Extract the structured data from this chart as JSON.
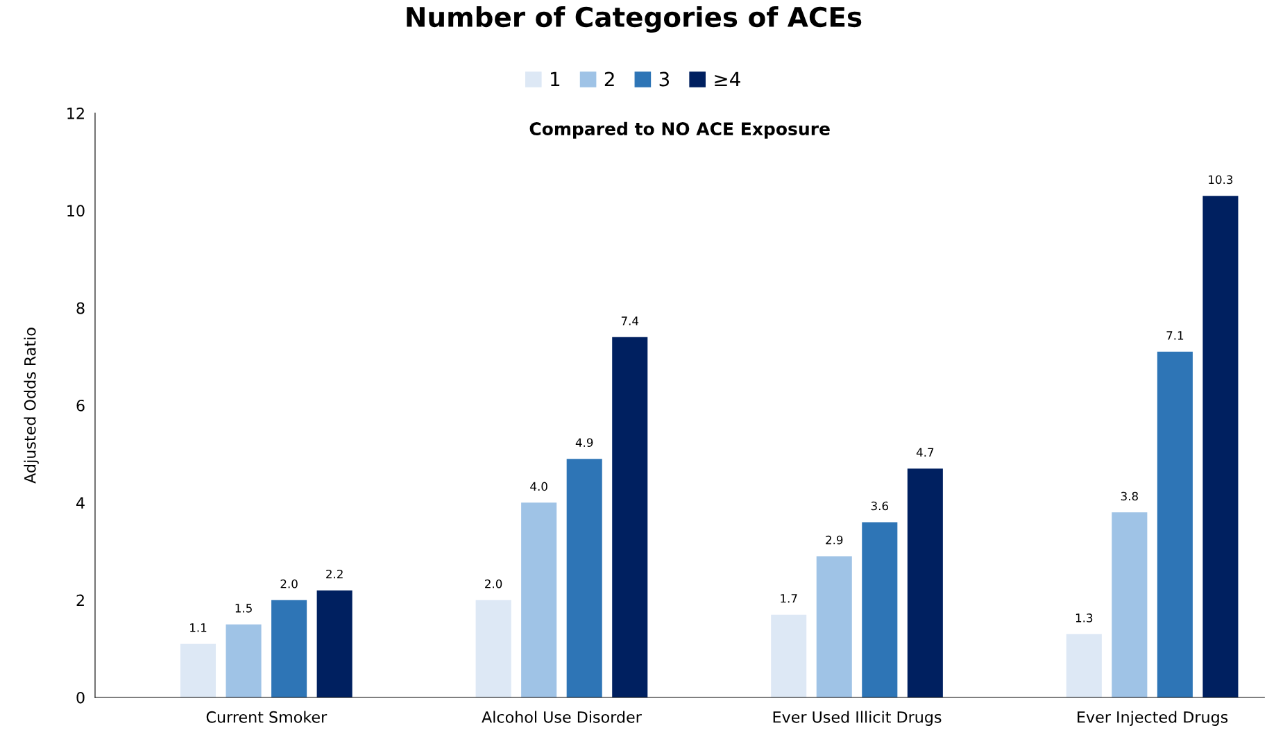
{
  "chart_data": {
    "type": "bar",
    "title": "Number of Categories of ACEs",
    "subtitle": "Compared to NO ACE Exposure",
    "ylabel": "Adjusted Odds Ratio",
    "categories": [
      "Current Smoker",
      "Alcohol Use Disorder",
      "Ever Used Illicit Drugs",
      "Ever Injected Drugs"
    ],
    "series": [
      {
        "name": "1",
        "color": "#dde8f5",
        "values": [
          1.1,
          2.0,
          1.7,
          1.3
        ],
        "value_labels": [
          "1.1",
          "2.0",
          "1.7",
          "1.3"
        ]
      },
      {
        "name": "2",
        "color": "#9fc3e6",
        "values": [
          1.5,
          4.0,
          2.9,
          3.8
        ],
        "value_labels": [
          "1.5",
          "4.0",
          "2.9",
          "3.8"
        ]
      },
      {
        "name": "3",
        "color": "#2e75b6",
        "values": [
          2.0,
          4.9,
          3.6,
          7.1
        ],
        "value_labels": [
          "2.0",
          "4.9",
          "3.6",
          "7.1"
        ]
      },
      {
        "name": "≥4",
        "color": "#002060",
        "values": [
          2.2,
          7.4,
          4.7,
          10.3
        ],
        "value_labels": [
          "2.2",
          "7.4",
          "4.7",
          "10.3"
        ]
      }
    ],
    "ylim": [
      0,
      12
    ],
    "yticks": [
      0,
      2,
      4,
      6,
      8,
      10,
      12
    ],
    "grid": false,
    "legend": "top"
  }
}
